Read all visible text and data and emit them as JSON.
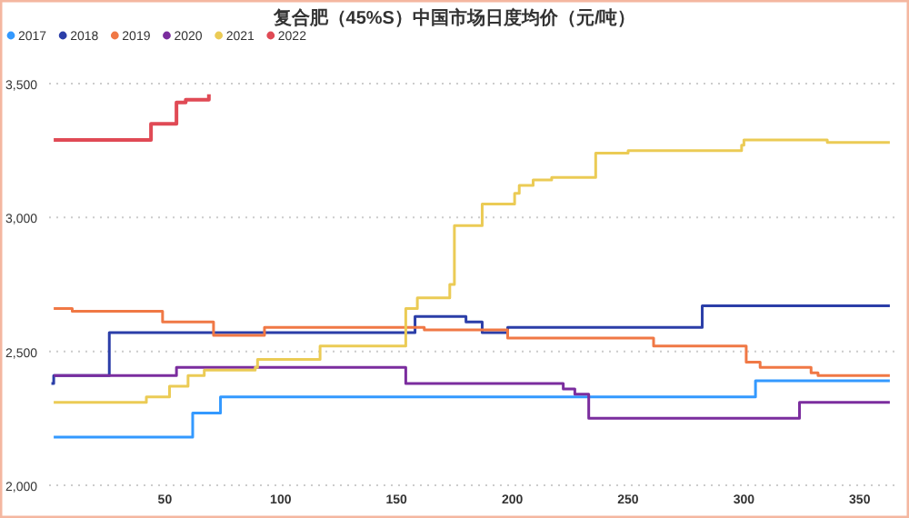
{
  "chart_data": {
    "type": "step",
    "title": "复合肥（45%S）中国市场日度均价（元/吨）",
    "xlim": [
      0,
      365
    ],
    "xticks": [
      50,
      100,
      150,
      200,
      250,
      300,
      350
    ],
    "ylim": [
      2000,
      3500
    ],
    "yticks": [
      {
        "value": 2000,
        "label": "2,000"
      },
      {
        "value": 2500,
        "label": "2,500"
      },
      {
        "value": 3000,
        "label": "3,000"
      },
      {
        "value": 3500,
        "label": "3,500"
      }
    ],
    "grid": "y",
    "legend": "top left",
    "marker": "none",
    "line_style": "solid",
    "series": [
      {
        "name": "2017",
        "color": "#3399ff",
        "x": [
          2,
          62,
          74,
          305,
          363
        ],
        "values": [
          2180,
          2270,
          2330,
          2390,
          2390
        ]
      },
      {
        "name": "2018",
        "color": "#2b3ea8",
        "x": [
          1,
          2,
          26,
          158,
          180,
          187,
          198,
          282,
          363
        ],
        "values": [
          2380,
          2410,
          2570,
          2630,
          2610,
          2570,
          2590,
          2670,
          2670
        ]
      },
      {
        "name": "2019",
        "color": "#f07845",
        "x": [
          2,
          10,
          49,
          71,
          81,
          93,
          162,
          198,
          261,
          301,
          307,
          329,
          332,
          363
        ],
        "values": [
          2660,
          2650,
          2610,
          2560,
          2560,
          2590,
          2580,
          2550,
          2520,
          2460,
          2440,
          2420,
          2410,
          2410
        ]
      },
      {
        "name": "2020",
        "color": "#7b2d9e",
        "x": [
          2,
          55,
          154,
          222,
          227,
          233,
          324,
          363
        ],
        "values": [
          2410,
          2440,
          2380,
          2360,
          2340,
          2250,
          2310,
          2310
        ]
      },
      {
        "name": "2021",
        "color": "#ebcb55",
        "x": [
          2,
          42,
          52,
          60,
          67,
          89,
          90,
          117,
          154,
          159,
          173,
          175,
          187,
          201,
          203,
          209,
          217,
          236,
          250,
          299,
          300,
          336,
          363
        ],
        "values": [
          2310,
          2330,
          2370,
          2410,
          2430,
          2440,
          2470,
          2520,
          2660,
          2700,
          2750,
          2970,
          3050,
          3090,
          3120,
          3140,
          3150,
          3240,
          3250,
          3270,
          3290,
          3280,
          3280
        ]
      },
      {
        "name": "2022",
        "color": "#e04a55",
        "x": [
          2,
          44,
          55,
          59,
          69
        ],
        "values": [
          3290,
          3350,
          3430,
          3440,
          3460
        ]
      }
    ]
  }
}
